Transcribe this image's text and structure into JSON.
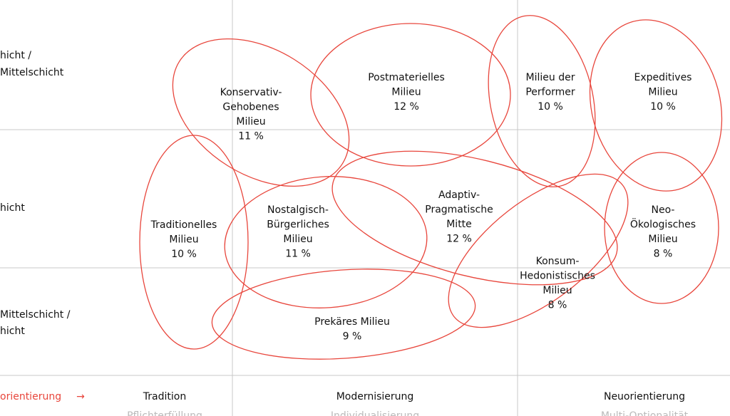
{
  "rows": [
    {
      "lines": [
        "hicht /",
        "Mittelschicht"
      ]
    },
    {
      "lines": [
        "hicht"
      ]
    },
    {
      "lines": [
        "Mittelschicht /",
        "hicht"
      ]
    }
  ],
  "milieus": [
    {
      "lines": [
        "Konservativ-",
        "Gehobenes",
        "Milieu"
      ],
      "share": "11 %"
    },
    {
      "lines": [
        "Postmaterielles",
        "Milieu"
      ],
      "share": "12 %"
    },
    {
      "lines": [
        "Milieu der",
        "Performer"
      ],
      "share": "10 %"
    },
    {
      "lines": [
        "Expeditives",
        "Milieu"
      ],
      "share": "10 %"
    },
    {
      "lines": [
        "Traditionelles",
        "Milieu"
      ],
      "share": "10 %"
    },
    {
      "lines": [
        "Nostalgisch-",
        "Bürgerliches",
        "Milieu"
      ],
      "share": "11 %"
    },
    {
      "lines": [
        "Adaptiv-",
        "Pragmatische",
        "Mitte"
      ],
      "share": "12 %"
    },
    {
      "lines": [
        "Konsum-",
        "Hedonistisches",
        "Milieu"
      ],
      "share": "8 %"
    },
    {
      "lines": [
        "Neo-",
        "Ökologisches",
        "Milieu"
      ],
      "share": "8 %"
    },
    {
      "lines": [
        "Prekäres Milieu"
      ],
      "share": "9 %"
    }
  ],
  "axis": {
    "label": "orientierung",
    "arrow": "→",
    "values": [
      "Tradition",
      "Modernisierung",
      "Neuorientierung"
    ],
    "sublabels": [
      "Pflichterfüllung",
      "Individualisierung",
      "Multi-Optionalität"
    ]
  }
}
